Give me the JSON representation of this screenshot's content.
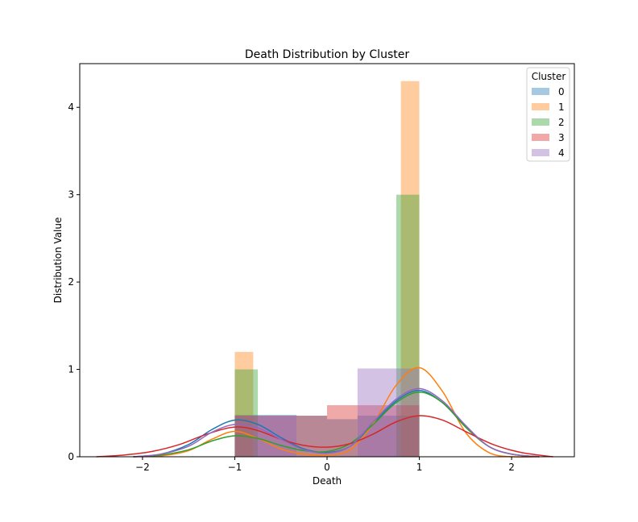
{
  "chart_data": {
    "type": "bar",
    "title": "Death Distribution by Cluster",
    "xlabel": "Death",
    "ylabel": "Distribution Value",
    "xlim": [
      -2.68,
      2.68
    ],
    "ylim": [
      0,
      4.5
    ],
    "xticks": [
      -2,
      -1,
      0,
      1,
      2
    ],
    "yticks": [
      0,
      1,
      2,
      3,
      4
    ],
    "grid": false,
    "legend": {
      "title": "Cluster",
      "placement": "top-right"
    },
    "series": [
      {
        "name": "0",
        "color": "#1f77b4",
        "bars": [
          {
            "x0": -1.0,
            "x1": -0.33,
            "height": 0.48
          },
          {
            "x0": -0.33,
            "x1": 0.0,
            "height": 0.47
          },
          {
            "x0": 0.0,
            "x1": 0.33,
            "height": 0.43
          },
          {
            "x0": 0.33,
            "x1": 1.0,
            "height": 0.47
          }
        ],
        "kde": [
          [
            -2.1,
            0.0
          ],
          [
            -1.8,
            0.03
          ],
          [
            -1.5,
            0.14
          ],
          [
            -1.25,
            0.31
          ],
          [
            -1.0,
            0.42
          ],
          [
            -0.75,
            0.37
          ],
          [
            -0.5,
            0.22
          ],
          [
            -0.25,
            0.09
          ],
          [
            0.0,
            0.05
          ],
          [
            0.25,
            0.12
          ],
          [
            0.5,
            0.38
          ],
          [
            0.75,
            0.64
          ],
          [
            1.0,
            0.76
          ],
          [
            1.25,
            0.62
          ],
          [
            1.5,
            0.35
          ],
          [
            1.75,
            0.12
          ],
          [
            2.0,
            0.03
          ],
          [
            2.3,
            0.0
          ]
        ]
      },
      {
        "name": "1",
        "color": "#ff7f0e",
        "bars": [
          {
            "x0": -1.0,
            "x1": -0.8,
            "height": 1.2
          },
          {
            "x0": 0.8,
            "x1": 1.0,
            "height": 4.3
          }
        ],
        "kde": [
          [
            -2.1,
            0.0
          ],
          [
            -1.8,
            0.01
          ],
          [
            -1.5,
            0.07
          ],
          [
            -1.25,
            0.2
          ],
          [
            -1.0,
            0.29
          ],
          [
            -0.75,
            0.21
          ],
          [
            -0.5,
            0.09
          ],
          [
            -0.25,
            0.03
          ],
          [
            0.0,
            0.02
          ],
          [
            0.25,
            0.08
          ],
          [
            0.5,
            0.38
          ],
          [
            0.75,
            0.82
          ],
          [
            1.0,
            1.02
          ],
          [
            1.25,
            0.75
          ],
          [
            1.5,
            0.28
          ],
          [
            1.75,
            0.05
          ],
          [
            2.0,
            0.0
          ],
          [
            2.3,
            0.0
          ]
        ]
      },
      {
        "name": "2",
        "color": "#2ca02c",
        "bars": [
          {
            "x0": -1.0,
            "x1": -0.75,
            "height": 1.0
          },
          {
            "x0": 0.75,
            "x1": 1.0,
            "height": 3.0
          }
        ],
        "kde": [
          [
            -2.1,
            0.0
          ],
          [
            -1.8,
            0.02
          ],
          [
            -1.5,
            0.08
          ],
          [
            -1.25,
            0.18
          ],
          [
            -1.0,
            0.24
          ],
          [
            -0.75,
            0.21
          ],
          [
            -0.5,
            0.13
          ],
          [
            -0.25,
            0.07
          ],
          [
            0.0,
            0.06
          ],
          [
            0.25,
            0.15
          ],
          [
            0.5,
            0.37
          ],
          [
            0.75,
            0.62
          ],
          [
            1.0,
            0.74
          ],
          [
            1.25,
            0.62
          ],
          [
            1.5,
            0.34
          ],
          [
            1.75,
            0.12
          ],
          [
            2.0,
            0.03
          ],
          [
            2.3,
            0.0
          ]
        ]
      },
      {
        "name": "3",
        "color": "#d62728",
        "bars": [
          {
            "x0": -1.0,
            "x1": -0.33,
            "height": 0.47
          },
          {
            "x0": -0.33,
            "x1": 0.0,
            "height": 0.47
          },
          {
            "x0": 0.0,
            "x1": 0.33,
            "height": 0.59
          },
          {
            "x0": 0.33,
            "x1": 1.0,
            "height": 0.59
          }
        ],
        "kde": [
          [
            -2.5,
            0.0
          ],
          [
            -2.2,
            0.02
          ],
          [
            -1.9,
            0.06
          ],
          [
            -1.6,
            0.14
          ],
          [
            -1.3,
            0.26
          ],
          [
            -1.0,
            0.34
          ],
          [
            -0.75,
            0.3
          ],
          [
            -0.5,
            0.2
          ],
          [
            -0.25,
            0.13
          ],
          [
            0.0,
            0.11
          ],
          [
            0.25,
            0.15
          ],
          [
            0.5,
            0.26
          ],
          [
            0.75,
            0.4
          ],
          [
            1.0,
            0.47
          ],
          [
            1.25,
            0.42
          ],
          [
            1.5,
            0.29
          ],
          [
            1.8,
            0.14
          ],
          [
            2.1,
            0.05
          ],
          [
            2.45,
            0.0
          ]
        ]
      },
      {
        "name": "4",
        "color": "#9467bd",
        "bars": [
          {
            "x0": -1.0,
            "x1": -0.33,
            "height": 0.47
          },
          {
            "x0": -0.33,
            "x1": 0.33,
            "height": 0.0
          },
          {
            "x0": 0.33,
            "x1": 1.0,
            "height": 1.01
          }
        ],
        "kde": [
          [
            -2.1,
            0.0
          ],
          [
            -1.8,
            0.03
          ],
          [
            -1.5,
            0.12
          ],
          [
            -1.25,
            0.28
          ],
          [
            -1.0,
            0.37
          ],
          [
            -0.75,
            0.33
          ],
          [
            -0.5,
            0.2
          ],
          [
            -0.25,
            0.08
          ],
          [
            0.0,
            0.04
          ],
          [
            0.25,
            0.12
          ],
          [
            0.5,
            0.4
          ],
          [
            0.75,
            0.66
          ],
          [
            1.0,
            0.78
          ],
          [
            1.25,
            0.64
          ],
          [
            1.5,
            0.36
          ],
          [
            1.75,
            0.12
          ],
          [
            2.0,
            0.03
          ],
          [
            2.3,
            0.0
          ]
        ]
      }
    ]
  }
}
